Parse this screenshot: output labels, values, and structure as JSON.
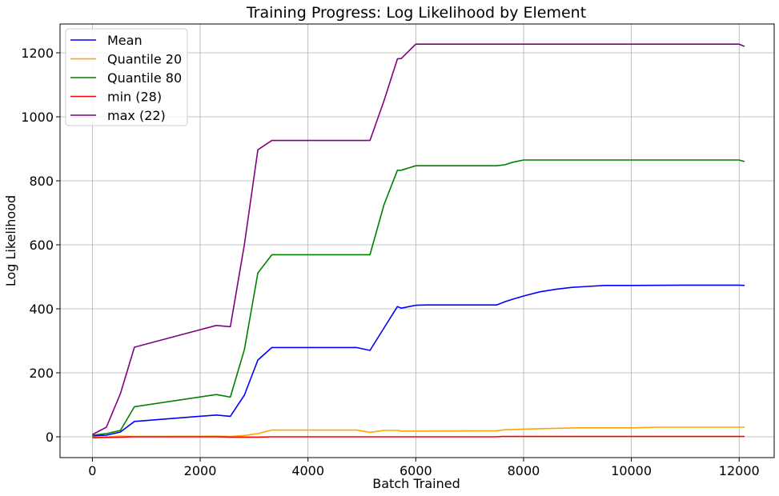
{
  "chart_data": {
    "type": "line",
    "title": "Training Progress: Log Likelihood by Element",
    "xlabel": "Batch Trained",
    "ylabel": "Log Likelihood",
    "xlim": [
      -600,
      12650
    ],
    "ylim": [
      -65,
      1290
    ],
    "xticks": [
      0,
      2000,
      4000,
      6000,
      8000,
      10000,
      12000
    ],
    "xtick_labels": [
      "0",
      "2000",
      "4000",
      "6000",
      "8000",
      "10000",
      "12000"
    ],
    "yticks": [
      0,
      200,
      400,
      600,
      800,
      1000,
      1200
    ],
    "ytick_labels": [
      "0",
      "200",
      "400",
      "600",
      "800",
      "1000",
      "1200"
    ],
    "grid": true,
    "legend_position": "top-left",
    "series": [
      {
        "name": "Mean",
        "color": "#0000ff",
        "points": [
          [
            0,
            3
          ],
          [
            260,
            5
          ],
          [
            520,
            15
          ],
          [
            780,
            48
          ],
          [
            2300,
            68
          ],
          [
            2560,
            64
          ],
          [
            2820,
            130
          ],
          [
            3070,
            240
          ],
          [
            3330,
            279
          ],
          [
            4900,
            279
          ],
          [
            5150,
            270
          ],
          [
            5410,
            340
          ],
          [
            5660,
            407
          ],
          [
            5730,
            402
          ],
          [
            6000,
            411
          ],
          [
            6200,
            412
          ],
          [
            7500,
            412
          ],
          [
            7650,
            422
          ],
          [
            7800,
            430
          ],
          [
            8000,
            440
          ],
          [
            8300,
            453
          ],
          [
            8600,
            461
          ],
          [
            8900,
            467
          ],
          [
            9200,
            470
          ],
          [
            9500,
            473
          ],
          [
            10000,
            473
          ],
          [
            11000,
            474
          ],
          [
            12000,
            474
          ],
          [
            12100,
            473
          ]
        ]
      },
      {
        "name": "Quantile 20",
        "color": "#ffa500",
        "points": [
          [
            0,
            -2
          ],
          [
            260,
            0
          ],
          [
            520,
            2
          ],
          [
            780,
            1
          ],
          [
            2300,
            2
          ],
          [
            2560,
            1
          ],
          [
            2820,
            4
          ],
          [
            3070,
            10
          ],
          [
            3330,
            21
          ],
          [
            4900,
            21
          ],
          [
            5150,
            14
          ],
          [
            5410,
            20
          ],
          [
            5660,
            20
          ],
          [
            5730,
            18
          ],
          [
            7500,
            19
          ],
          [
            7650,
            22
          ],
          [
            8000,
            24
          ],
          [
            8500,
            26
          ],
          [
            9000,
            28
          ],
          [
            10000,
            28
          ],
          [
            10500,
            30
          ],
          [
            12100,
            30
          ]
        ]
      },
      {
        "name": "Quantile 80",
        "color": "#008000",
        "points": [
          [
            0,
            5
          ],
          [
            260,
            10
          ],
          [
            520,
            20
          ],
          [
            780,
            94
          ],
          [
            2300,
            132
          ],
          [
            2560,
            124
          ],
          [
            2820,
            272
          ],
          [
            3070,
            512
          ],
          [
            3330,
            569
          ],
          [
            4900,
            569
          ],
          [
            5150,
            569
          ],
          [
            5410,
            725
          ],
          [
            5660,
            833
          ],
          [
            5730,
            833
          ],
          [
            6000,
            847
          ],
          [
            7500,
            847
          ],
          [
            7650,
            850
          ],
          [
            7800,
            858
          ],
          [
            8000,
            865
          ],
          [
            12000,
            865
          ],
          [
            12100,
            860
          ]
        ]
      },
      {
        "name": "min (28)",
        "color": "#ff0000",
        "points": [
          [
            0,
            -3
          ],
          [
            260,
            -2
          ],
          [
            520,
            -1
          ],
          [
            780,
            0
          ],
          [
            2300,
            0
          ],
          [
            2560,
            -1
          ],
          [
            3070,
            -1
          ],
          [
            3330,
            0
          ],
          [
            7500,
            0
          ],
          [
            7600,
            1
          ],
          [
            12100,
            1
          ]
        ]
      },
      {
        "name": "max (22)",
        "color": "#800080",
        "points": [
          [
            0,
            7
          ],
          [
            260,
            30
          ],
          [
            520,
            135
          ],
          [
            780,
            280
          ],
          [
            2300,
            348
          ],
          [
            2560,
            344
          ],
          [
            2820,
            600
          ],
          [
            3070,
            897
          ],
          [
            3330,
            926
          ],
          [
            5150,
            926
          ],
          [
            5410,
            1050
          ],
          [
            5660,
            1181
          ],
          [
            5730,
            1182
          ],
          [
            6000,
            1227
          ],
          [
            12000,
            1227
          ],
          [
            12100,
            1220
          ]
        ]
      }
    ]
  }
}
